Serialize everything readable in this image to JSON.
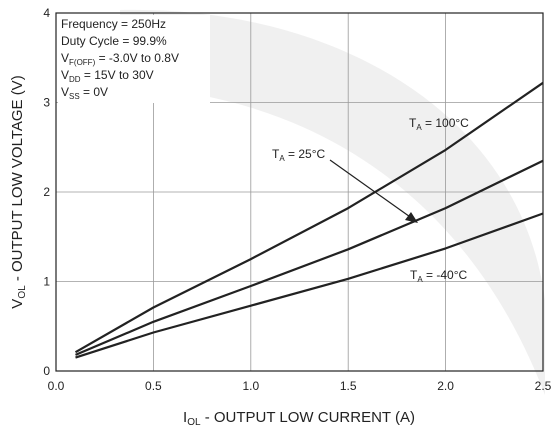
{
  "chart_data": {
    "type": "line",
    "xlabel": {
      "main": "I",
      "sub": "OL",
      "rest": " - OUTPUT LOW CURRENT (A)"
    },
    "ylabel": {
      "main": "V",
      "sub": "OL",
      "rest": " - OUTPUT LOW VOLTAGE (V)"
    },
    "xlim": [
      0,
      2.5
    ],
    "ylim": [
      0,
      4
    ],
    "x_ticks": [
      0,
      0.5,
      1.0,
      1.5,
      2.0,
      2.5
    ],
    "x_tick_labels": [
      "0.0",
      "0.5",
      "1.0",
      "1.5",
      "2.0",
      "2.5"
    ],
    "y_ticks": [
      0,
      1,
      2,
      3,
      4
    ],
    "y_tick_labels": [
      "0",
      "1",
      "2",
      "3",
      "4"
    ],
    "grid": true,
    "conditions": [
      {
        "main": "Frequency = 250Hz",
        "sub": "",
        "rest": ""
      },
      {
        "main": "Duty Cycle = 99.9%",
        "sub": "",
        "rest": ""
      },
      {
        "main": "V",
        "sub": "F(OFF)",
        "rest": " = -3.0V to 0.8V"
      },
      {
        "main": "V",
        "sub": "DD",
        "rest": " = 15V to 30V"
      },
      {
        "main": "V",
        "sub": "SS",
        "rest": " = 0V"
      }
    ],
    "series": [
      {
        "name": "T_A = 100°C",
        "label": {
          "main": "T",
          "sub": "A",
          "rest": " = 100°C"
        },
        "x": [
          0.1,
          0.5,
          1.0,
          1.5,
          2.0,
          2.5
        ],
        "y": [
          0.21,
          0.71,
          1.25,
          1.82,
          2.47,
          3.22
        ]
      },
      {
        "name": "T_A = 25°C",
        "label": {
          "main": "T",
          "sub": "A",
          "rest": " = 25°C"
        },
        "x": [
          0.1,
          0.5,
          1.0,
          1.5,
          2.0,
          2.5
        ],
        "y": [
          0.18,
          0.55,
          0.95,
          1.36,
          1.82,
          2.35
        ]
      },
      {
        "name": "T_A = -40°C",
        "label": {
          "main": "T",
          "sub": "A",
          "rest": " = -40°C"
        },
        "x": [
          0.1,
          0.5,
          1.0,
          1.5,
          2.0,
          2.5
        ],
        "y": [
          0.15,
          0.43,
          0.73,
          1.03,
          1.37,
          1.76
        ]
      }
    ]
  }
}
